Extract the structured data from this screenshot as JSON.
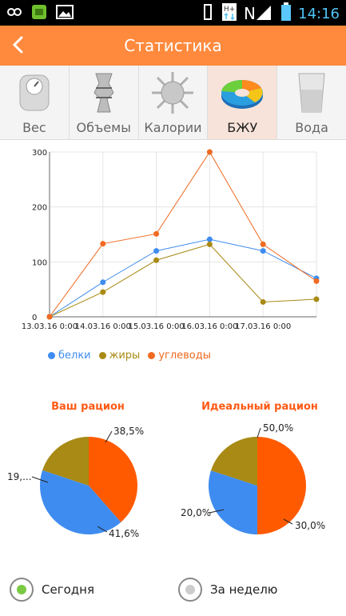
{
  "status_bar": {
    "time": "14:16"
  },
  "app_bar": {
    "title": "Статистика"
  },
  "tabs": [
    {
      "label": "Вес",
      "icon": "scale-icon"
    },
    {
      "label": "Объемы",
      "icon": "body-icon"
    },
    {
      "label": "Калории",
      "icon": "sun-icon"
    },
    {
      "label": "БЖУ",
      "icon": "donut-icon",
      "active": true
    },
    {
      "label": "Вода",
      "icon": "glass-icon"
    }
  ],
  "chart_data": [
    {
      "type": "line",
      "x": [
        "13.03.16 0:00",
        "14.03.16 0:00",
        "15.03.16 0:00",
        "16.03.16 0:00",
        "17.03.16 0:00",
        ""
      ],
      "ylim": [
        0,
        300
      ],
      "yticks": [
        0,
        100,
        200,
        300
      ],
      "grid": true,
      "legend": "bottom-left",
      "series": [
        {
          "name": "белки",
          "color": "#3f8cf0",
          "values": [
            0,
            63,
            120,
            141,
            120,
            70
          ]
        },
        {
          "name": "жиры",
          "color": "#a88a14",
          "values": [
            0,
            45,
            103,
            132,
            27,
            32
          ]
        },
        {
          "name": "углеводы",
          "color": "#f06a21",
          "values": [
            0,
            133,
            151,
            300,
            132,
            65
          ]
        }
      ]
    },
    {
      "type": "pie",
      "title": "Ваш рацион",
      "slices": [
        {
          "value": 38.5,
          "label": "38,5%",
          "color": "#ff5a00"
        },
        {
          "value": 41.6,
          "label": "41,6%",
          "color": "#3f8cf0"
        },
        {
          "value": 19.9,
          "label": "19,...",
          "color": "#a88a14"
        }
      ]
    },
    {
      "type": "pie",
      "title": "Идеальный рацион",
      "slices": [
        {
          "value": 50.0,
          "label": "50,0%",
          "color": "#ff5a00"
        },
        {
          "value": 30.0,
          "label": "30,0%",
          "color": "#3f8cf0"
        },
        {
          "value": 20.0,
          "label": "20,0%",
          "color": "#a88a14"
        }
      ]
    }
  ],
  "period": {
    "today_label": "Сегодня",
    "week_label": "За неделю",
    "today_color": "#7ac943",
    "week_color": "#cccccc"
  }
}
